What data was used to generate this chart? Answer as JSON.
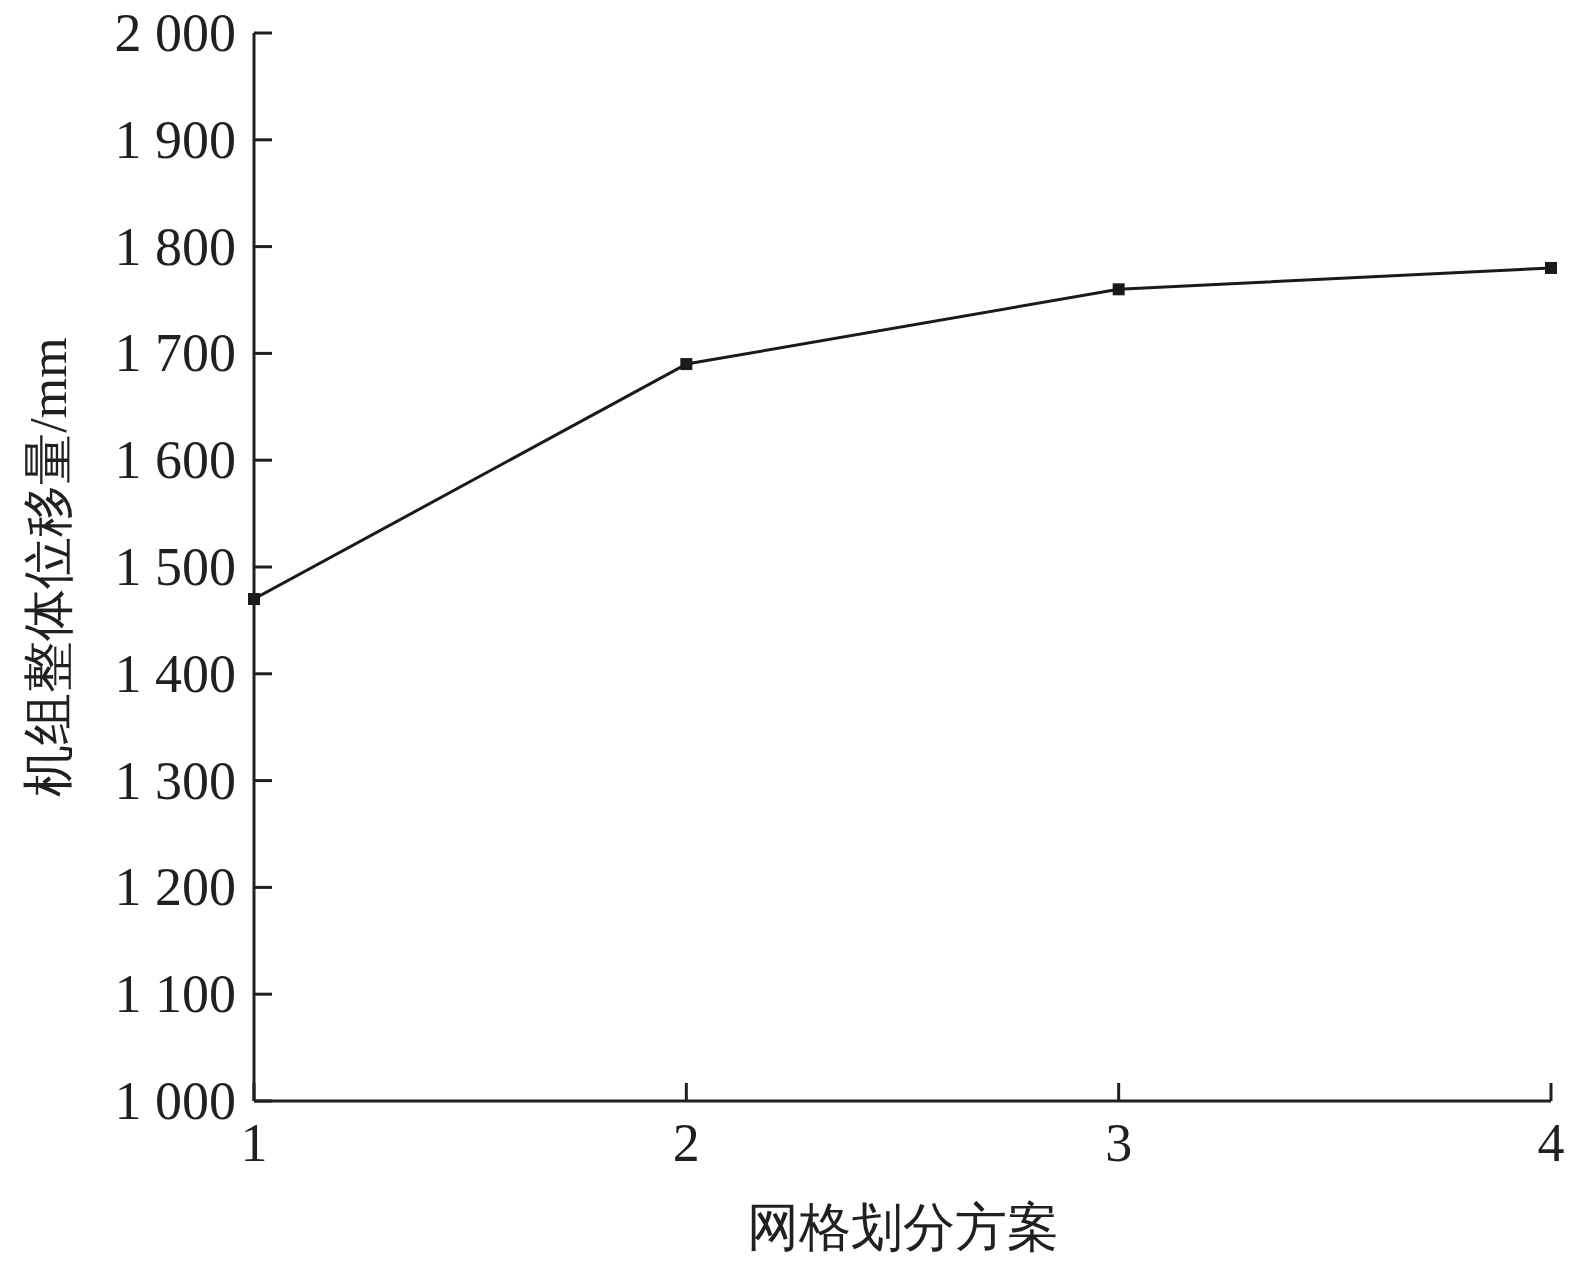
{
  "chart_data": {
    "type": "line",
    "xlabel": "网格划分方案",
    "ylabel": "机组整体位移量/mm",
    "x": [
      1,
      2,
      3,
      4
    ],
    "series": [
      {
        "color": "#1a1a1a",
        "values": [
          1470,
          1690,
          1760,
          1780
        ]
      }
    ],
    "xlim": [
      1,
      4
    ],
    "xticks": [
      1,
      2,
      3,
      4
    ],
    "ylim": [
      1000,
      2000
    ],
    "yticks": [
      {
        "value": 1000,
        "label": "1 000"
      },
      {
        "value": 1100,
        "label": "1 100"
      },
      {
        "value": 1200,
        "label": "1 200"
      },
      {
        "value": 1300,
        "label": "1 300"
      },
      {
        "value": 1400,
        "label": "1 400"
      },
      {
        "value": 1500,
        "label": "1 500"
      },
      {
        "value": 1600,
        "label": "1 600"
      },
      {
        "value": 1700,
        "label": "1 700"
      },
      {
        "value": 1800,
        "label": "1 800"
      },
      {
        "value": 1900,
        "label": "1 900"
      },
      {
        "value": 2000,
        "label": "2 000"
      }
    ],
    "marker": "square",
    "grid": false
  }
}
